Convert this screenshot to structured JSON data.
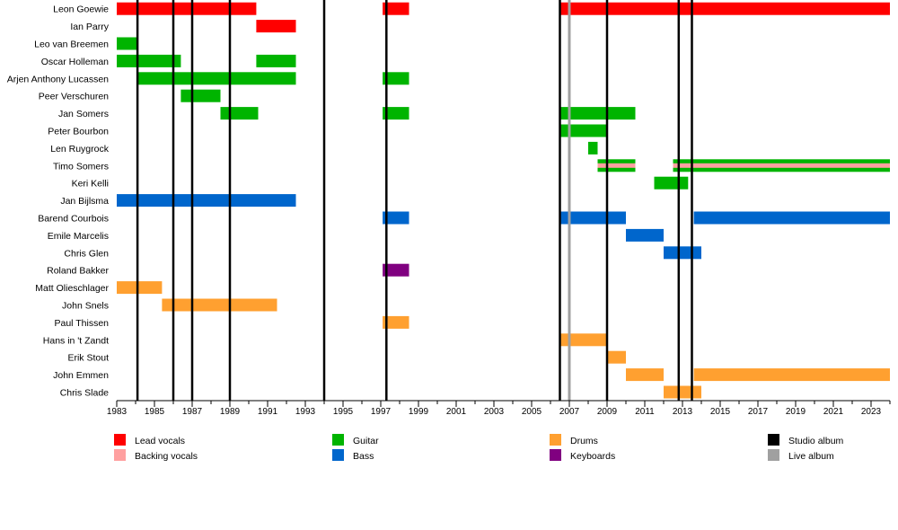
{
  "chart_data": {
    "type": "timeline",
    "xlim": [
      1983,
      2024
    ],
    "tick_labels": [
      "1983",
      "1985",
      "1987",
      "1989",
      "1991",
      "1993",
      "1995",
      "1997",
      "1999",
      "2001",
      "2003",
      "2005",
      "2007",
      "2009",
      "2011",
      "2013",
      "2015",
      "2017",
      "2019",
      "2021",
      "2023"
    ],
    "members": [
      {
        "name": "Leon Goewie",
        "bars": [
          {
            "role": "Lead vocals",
            "start": 1983.0,
            "end": 1990.4
          },
          {
            "role": "Lead vocals",
            "start": 1997.1,
            "end": 1998.5
          },
          {
            "role": "Lead vocals",
            "start": 2006.5,
            "end": 2024.3
          }
        ]
      },
      {
        "name": "Ian Parry",
        "bars": [
          {
            "role": "Lead vocals",
            "start": 1990.4,
            "end": 1992.5
          }
        ]
      },
      {
        "name": "Leo van Breemen",
        "bars": [
          {
            "role": "Guitar",
            "start": 1983.0,
            "end": 1984.1
          }
        ]
      },
      {
        "name": "Oscar Holleman",
        "bars": [
          {
            "role": "Guitar",
            "start": 1983.0,
            "end": 1986.4
          },
          {
            "role": "Guitar",
            "start": 1990.4,
            "end": 1992.5
          }
        ]
      },
      {
        "name": "Arjen Anthony Lucassen",
        "bars": [
          {
            "role": "Guitar",
            "start": 1984.1,
            "end": 1992.5
          },
          {
            "role": "Guitar",
            "start": 1997.1,
            "end": 1998.5
          }
        ]
      },
      {
        "name": "Peer Verschuren",
        "bars": [
          {
            "role": "Guitar",
            "start": 1986.4,
            "end": 1988.5
          }
        ]
      },
      {
        "name": "Jan Somers",
        "bars": [
          {
            "role": "Guitar",
            "start": 1988.5,
            "end": 1990.5
          },
          {
            "role": "Guitar",
            "start": 1997.1,
            "end": 1998.5
          },
          {
            "role": "Guitar",
            "start": 2006.5,
            "end": 2010.5
          }
        ]
      },
      {
        "name": "Peter Bourbon",
        "bars": [
          {
            "role": "Guitar",
            "start": 2006.5,
            "end": 2009.0
          }
        ]
      },
      {
        "name": "Len Ruygrock",
        "bars": [
          {
            "role": "Guitar",
            "start": 2008.0,
            "end": 2008.5
          }
        ]
      },
      {
        "name": "Timo Somers",
        "bars": [
          {
            "role": "Guitar",
            "start": 2008.5,
            "end": 2010.5,
            "backing": true
          },
          {
            "role": "Guitar",
            "start": 2012.5,
            "end": 2024.3,
            "backing": true
          }
        ]
      },
      {
        "name": "Keri Kelli",
        "bars": [
          {
            "role": "Guitar",
            "start": 2011.5,
            "end": 2013.3
          }
        ]
      },
      {
        "name": "Jan Bijlsma",
        "bars": [
          {
            "role": "Bass",
            "start": 1983.0,
            "end": 1992.5
          }
        ]
      },
      {
        "name": "Barend Courbois",
        "bars": [
          {
            "role": "Bass",
            "start": 1997.1,
            "end": 1998.5
          },
          {
            "role": "Bass",
            "start": 2006.5,
            "end": 2010.0
          },
          {
            "role": "Bass",
            "start": 2013.6,
            "end": 2024.3
          }
        ]
      },
      {
        "name": "Emile Marcelis",
        "bars": [
          {
            "role": "Bass",
            "start": 2010.0,
            "end": 2012.0
          }
        ]
      },
      {
        "name": "Chris Glen",
        "bars": [
          {
            "role": "Bass",
            "start": 2012.0,
            "end": 2014.0
          }
        ]
      },
      {
        "name": "Roland Bakker",
        "bars": [
          {
            "role": "Keyboards",
            "start": 1997.1,
            "end": 1998.5
          }
        ]
      },
      {
        "name": "Matt Olieschlager",
        "bars": [
          {
            "role": "Drums",
            "start": 1983.0,
            "end": 1985.4
          }
        ]
      },
      {
        "name": "John Snels",
        "bars": [
          {
            "role": "Drums",
            "start": 1985.4,
            "end": 1991.5
          }
        ]
      },
      {
        "name": "Paul Thissen",
        "bars": [
          {
            "role": "Drums",
            "start": 1997.1,
            "end": 1998.5
          }
        ]
      },
      {
        "name": "Hans in 't Zandt",
        "bars": [
          {
            "role": "Drums",
            "start": 2006.5,
            "end": 2009.0
          }
        ]
      },
      {
        "name": "Erik Stout",
        "bars": [
          {
            "role": "Drums",
            "start": 2009.0,
            "end": 2010.0
          }
        ]
      },
      {
        "name": "John Emmen",
        "bars": [
          {
            "role": "Drums",
            "start": 2010.0,
            "end": 2012.0
          },
          {
            "role": "Drums",
            "start": 2013.6,
            "end": 2024.3
          }
        ]
      },
      {
        "name": "Chris Slade",
        "bars": [
          {
            "role": "Drums",
            "start": 2012.0,
            "end": 2014.0
          }
        ]
      }
    ],
    "studio_albums": [
      1984.1,
      1986.0,
      1987.0,
      1989.0,
      1994.0,
      1997.3,
      2006.5,
      2009.0,
      2012.8,
      2013.5
    ],
    "live_albums": [
      2007.0
    ],
    "legend": [
      {
        "label": "Lead vocals",
        "color": "#ff0000"
      },
      {
        "label": "Backing vocals",
        "color": "#ffa0a0"
      },
      {
        "label": "Guitar",
        "color": "#00b400"
      },
      {
        "label": "Bass",
        "color": "#0066cc"
      },
      {
        "label": "Drums",
        "color": "#ffa030"
      },
      {
        "label": "Keyboards",
        "color": "#800080"
      },
      {
        "label": "Studio album",
        "color": "#000000"
      },
      {
        "label": "Live album",
        "color": "#a0a0a0"
      }
    ],
    "role_colors": {
      "Lead vocals": "#ff0000",
      "Backing vocals": "#ffa0a0",
      "Guitar": "#00b400",
      "Bass": "#0066cc",
      "Drums": "#ffa030",
      "Keyboards": "#800080"
    },
    "studio_album_color": "#000000",
    "live_album_color": "#a0a0a0"
  }
}
